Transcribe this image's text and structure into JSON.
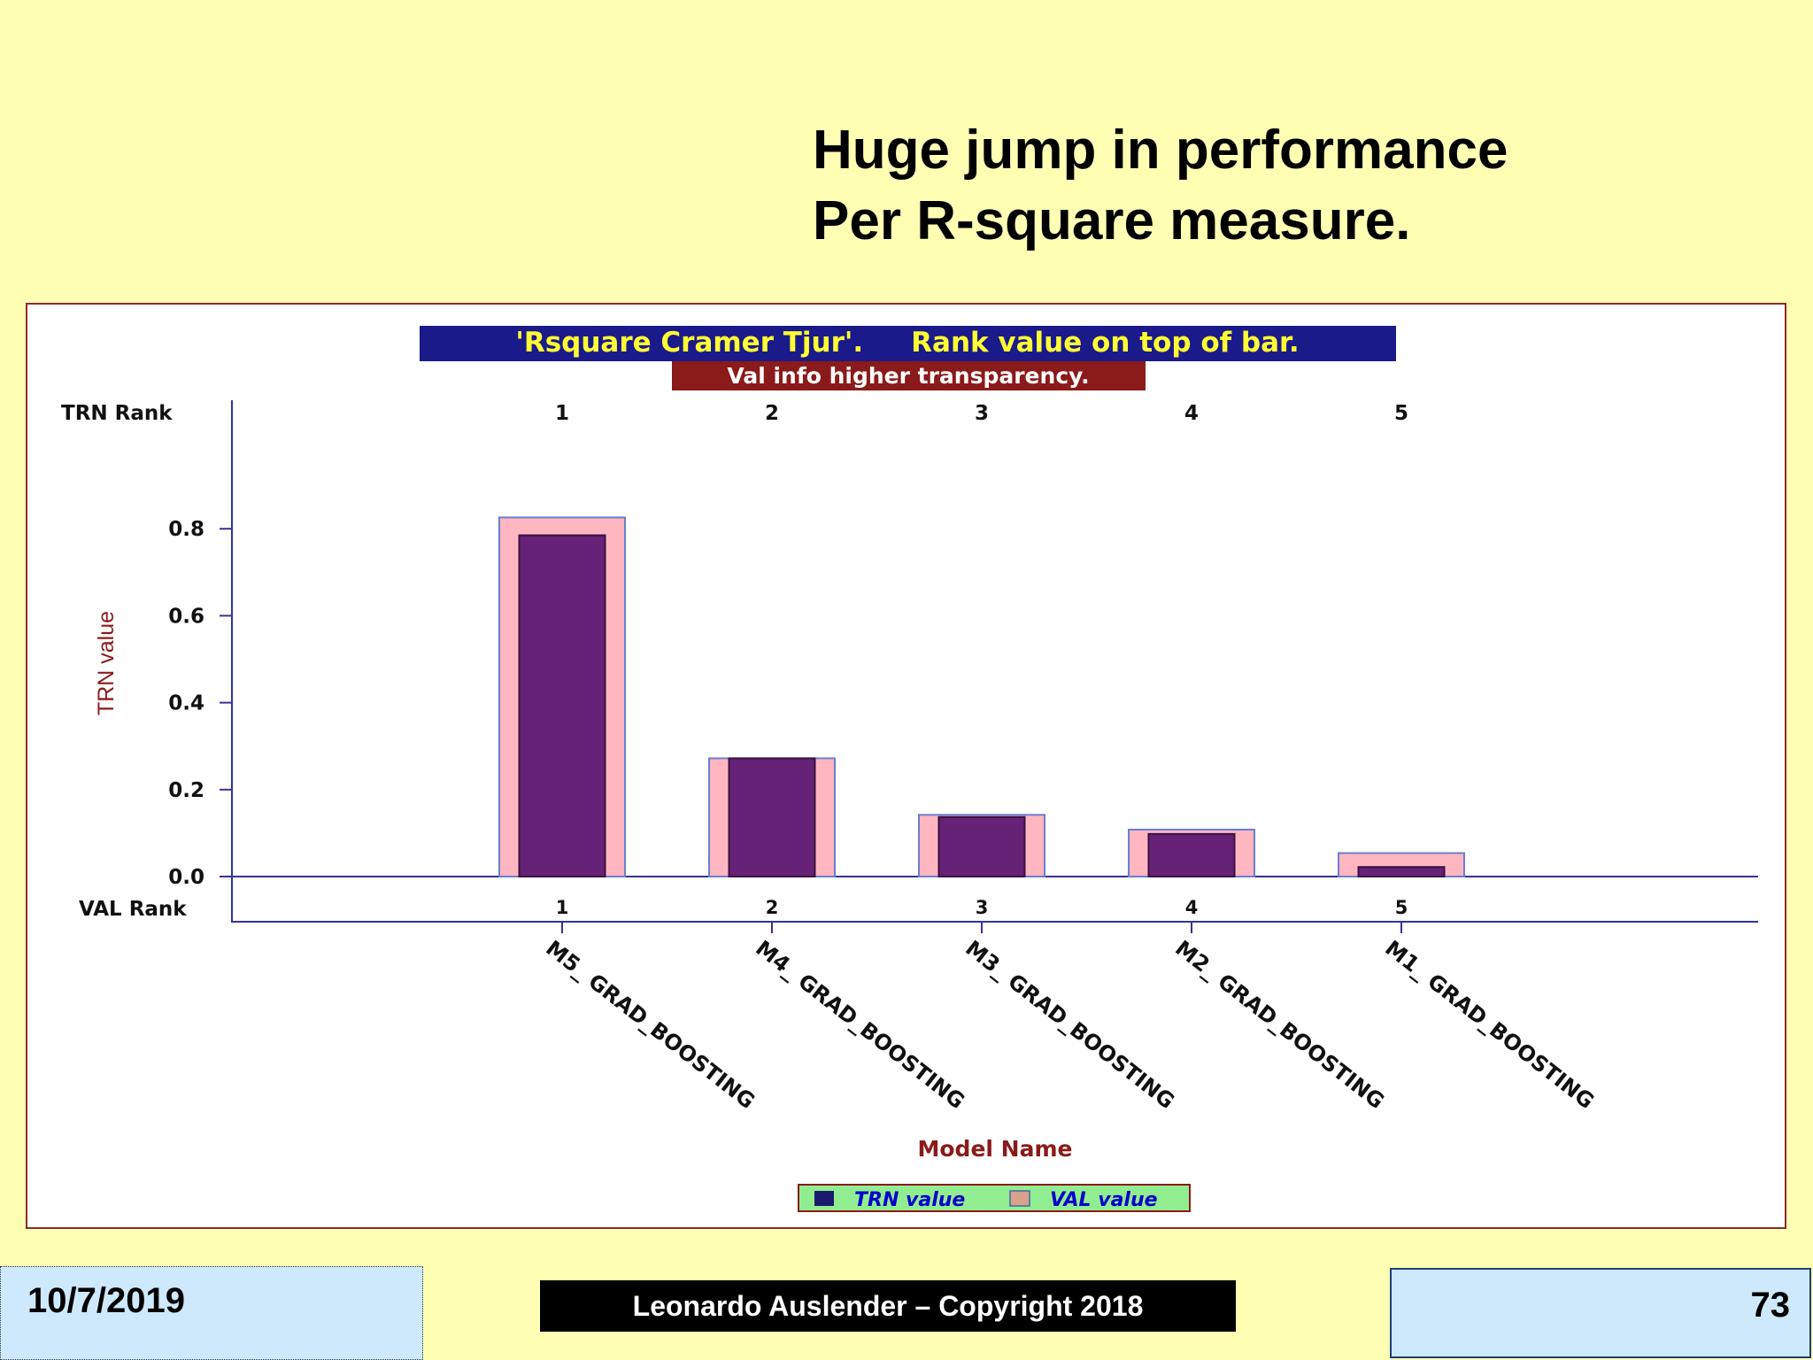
{
  "slide": {
    "title_line1": "Huge jump in performance",
    "title_line2": "Per R-square measure.",
    "footer_date": "10/7/2019",
    "footer_copyright": "Leonardo Auslender – Copyright 2018",
    "page_number": "73"
  },
  "chart_data": {
    "type": "bar",
    "title": "'Rsquare Cramer Tjur'.     Rank value on top of bar.",
    "subtitle": "Val info higher transparency.",
    "xlabel": "Model Name",
    "ylabel": "TRN value",
    "top_rank_label": "TRN Rank",
    "bottom_rank_label": "VAL Rank",
    "categories": [
      "M5_ GRAD_BOOSTING",
      "M4_ GRAD_BOOSTING",
      "M3_ GRAD_BOOSTING",
      "M2_ GRAD_BOOSTING",
      "M1_ GRAD_BOOSTING"
    ],
    "trn_rank": [
      "1",
      "2",
      "3",
      "4",
      "5"
    ],
    "val_rank": [
      "1",
      "2",
      "3",
      "4",
      "5"
    ],
    "series": [
      {
        "name": "TRN value",
        "values": [
          0.785,
          0.272,
          0.137,
          0.098,
          0.022
        ],
        "color": "#662277"
      },
      {
        "name": "VAL value",
        "values": [
          0.826,
          0.272,
          0.142,
          0.108,
          0.054
        ],
        "color": "#ffb6c1"
      }
    ],
    "yticks": [
      "0.0",
      "0.2",
      "0.4",
      "0.6",
      "0.8"
    ],
    "ylim": [
      0,
      0.8
    ],
    "legend": "bottom-center",
    "colors": {
      "title_bg": "#1a1a8a",
      "title_text": "#ffff33",
      "subtitle_bg": "#8b1a1a",
      "subtitle_text": "#ffffff",
      "axis": "#333399",
      "axis_label": "#8b1a1a",
      "legend_bg": "#90ee90",
      "legend_text": "#0000cc",
      "legend_border": "#8b1a1a"
    }
  }
}
